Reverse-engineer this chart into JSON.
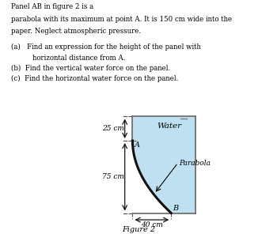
{
  "text_lines": [
    "Panel AB in figure 2 is a",
    "parabola with its maximum at point A. It is 150 cm wide into the",
    "paper. Neglect atmospheric pressure."
  ],
  "items": [
    "(a)   Find an expression for the height of the panel with",
    "        horizontal distance from A.",
    "(b)  Find the vertical water force on the panel.",
    "(c)  Find the horizontal water force on the panel."
  ],
  "figure_caption": "Figure 2",
  "water_label": "Water",
  "parabola_label": "Parabola",
  "point_A_label": "A",
  "point_B_label": "B",
  "dim_25": "25 cm",
  "dim_75": "75 cm",
  "dim_40": "40 cm",
  "water_color": "#bfe0f0",
  "parabola_color": "#111111",
  "border_color": "#666666",
  "arrow_color": "#111111",
  "dash_color": "#555555",
  "bg_color": "#ffffff"
}
